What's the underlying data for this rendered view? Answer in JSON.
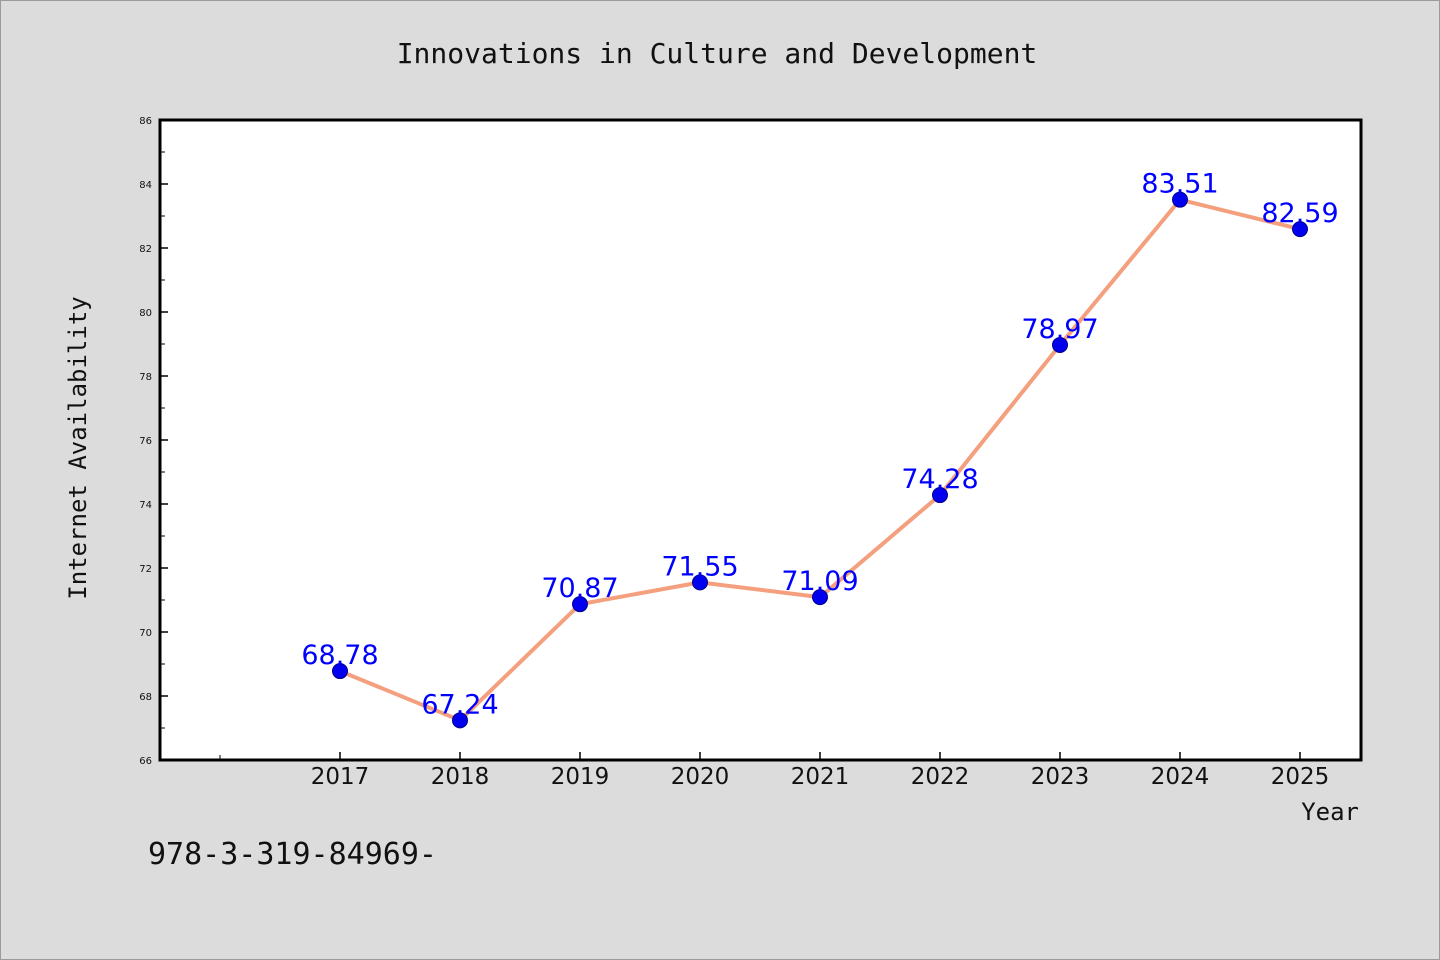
{
  "chart_data": {
    "type": "line",
    "title": "Innovations in Culture and Development",
    "xlabel": "Year",
    "ylabel": "Internet Availability",
    "categories": [
      "2017",
      "2018",
      "2019",
      "2020",
      "2021",
      "2022",
      "2023",
      "2024",
      "2025"
    ],
    "series": [
      {
        "values": [
          68.78,
          67.24,
          70.87,
          71.55,
          71.09,
          74.28,
          78.97,
          83.51,
          82.59
        ],
        "labels": [
          "68.78",
          "67.24",
          "70.87",
          "71.55",
          "71.09",
          "74.28",
          "78.97",
          "83.51",
          "82.59"
        ],
        "line_color": "#f4a07f",
        "marker_color": "#0000ee"
      }
    ],
    "ylim": [
      66,
      86
    ],
    "yticks": [
      "66",
      "68",
      "70",
      "72",
      "74",
      "76",
      "78",
      "80",
      "82",
      "84",
      "86"
    ],
    "label_color": "#0000ff",
    "grid": false,
    "legend": "none"
  },
  "footer_text": "978-3-319-84969-"
}
